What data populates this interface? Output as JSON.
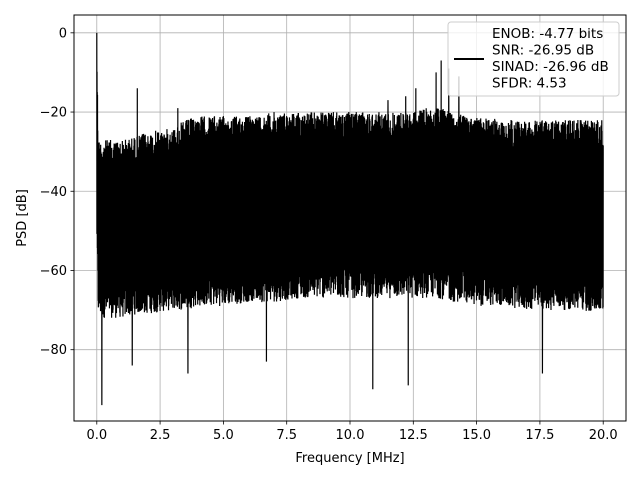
{
  "chart_data": {
    "type": "line",
    "title": "",
    "xlabel": "Frequency [MHz]",
    "ylabel": "PSD [dB]",
    "xlim": [
      -0.9,
      20.9
    ],
    "ylim": [
      -98,
      4.5
    ],
    "xticks": [
      0.0,
      2.5,
      5.0,
      7.5,
      10.0,
      12.5,
      15.0,
      17.5,
      20.0
    ],
    "xtick_labels": [
      "0.0",
      "2.5",
      "5.0",
      "7.5",
      "10.0",
      "12.5",
      "15.0",
      "17.5",
      "20.0"
    ],
    "yticks": [
      0,
      -20,
      -40,
      -60,
      -80
    ],
    "ytick_labels": [
      "0",
      "−20",
      "−40",
      "−60",
      "−80"
    ],
    "grid": true,
    "legend_position": "top-right",
    "series": [
      {
        "name": "ENOB: -4.77 bits\nSNR: -26.95 dB\nSINAD: -26.96 dB\nSFDR: 4.53",
        "color": "#000000",
        "envelope_x": [
          0.0,
          0.05,
          0.1,
          0.5,
          1.0,
          1.6,
          2.0,
          3.0,
          3.5,
          4.0,
          5.0,
          6.0,
          7.0,
          8.0,
          9.0,
          10.0,
          11.0,
          12.0,
          12.5,
          13.0,
          13.5,
          14.0,
          14.5,
          15.0,
          16.0,
          17.0,
          18.0,
          19.0,
          20.0
        ],
        "envelope_upper": [
          0,
          -25,
          -27,
          -27,
          -27,
          -26,
          -25,
          -24,
          -22,
          -21,
          -21,
          -21,
          -20,
          -20,
          -20,
          -20,
          -20,
          -20,
          -20,
          -19,
          -19,
          -19,
          -21,
          -21,
          -22,
          -22,
          -22,
          -22,
          -22
        ],
        "envelope_lower": [
          -48,
          -67,
          -68,
          -68,
          -68,
          -67,
          -67,
          -66,
          -66,
          -65,
          -65,
          -64,
          -64,
          -63,
          -63,
          -63,
          -63,
          -63,
          -63,
          -63,
          -63,
          -64,
          -64,
          -65,
          -65,
          -66,
          -66,
          -66,
          -67
        ],
        "peaks": [
          {
            "x": 0.0,
            "y": 0
          },
          {
            "x": 1.6,
            "y": -14
          },
          {
            "x": 3.2,
            "y": -19
          },
          {
            "x": 11.5,
            "y": -17
          },
          {
            "x": 12.2,
            "y": -16
          },
          {
            "x": 12.6,
            "y": -14
          },
          {
            "x": 13.4,
            "y": -10
          },
          {
            "x": 13.6,
            "y": -7
          },
          {
            "x": 13.9,
            "y": -9
          },
          {
            "x": 14.3,
            "y": -11
          }
        ],
        "dips": [
          {
            "x": 0.2,
            "y": -94
          },
          {
            "x": 1.4,
            "y": -84
          },
          {
            "x": 3.6,
            "y": -86
          },
          {
            "x": 6.7,
            "y": -83
          },
          {
            "x": 10.9,
            "y": -90
          },
          {
            "x": 12.3,
            "y": -89
          },
          {
            "x": 17.6,
            "y": -86
          }
        ]
      }
    ]
  }
}
